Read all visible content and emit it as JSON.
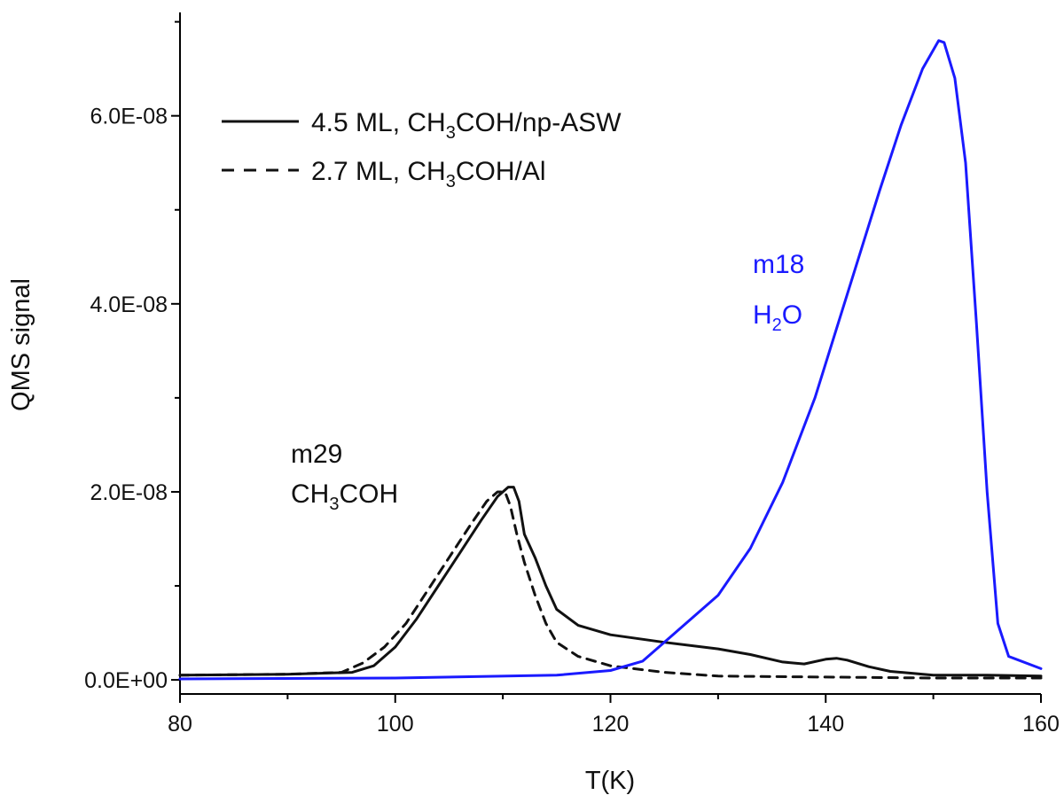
{
  "chart_data": {
    "type": "line",
    "title": "",
    "xlabel": "T(K)",
    "ylabel": "QMS signal",
    "xlim": [
      80,
      160
    ],
    "ylim": [
      -1.5e-09,
      7.1e-08
    ],
    "x_ticks": [
      80,
      100,
      120,
      140,
      160
    ],
    "x_tick_labels": [
      "80",
      "100",
      "120",
      "140",
      "160"
    ],
    "y_ticks": [
      0,
      2e-08,
      4e-08,
      6e-08
    ],
    "y_tick_labels": [
      "0.0E+00",
      "2.0E-08",
      "4.0E-08",
      "6.0E-08"
    ],
    "grid": false,
    "legend_position": "top-left",
    "series": [
      {
        "name": "4.5 ML, CH3COH/np-ASW",
        "legend_parts": [
          "4.5 ML, CH",
          "3",
          "COH/np-ASW"
        ],
        "style": "solid",
        "color": "#111111",
        "points": [
          [
            80,
            5e-10
          ],
          [
            90,
            6e-10
          ],
          [
            96,
            8e-10
          ],
          [
            98,
            1.5e-09
          ],
          [
            100,
            3.5e-09
          ],
          [
            102,
            6.5e-09
          ],
          [
            104,
            1e-08
          ],
          [
            106,
            1.35e-08
          ],
          [
            108,
            1.7e-08
          ],
          [
            109.5,
            1.95e-08
          ],
          [
            110.5,
            2.05e-08
          ],
          [
            111,
            2.05e-08
          ],
          [
            111.5,
            1.9e-08
          ],
          [
            112,
            1.55e-08
          ],
          [
            113,
            1.3e-08
          ],
          [
            114,
            1e-08
          ],
          [
            115,
            7.5e-09
          ],
          [
            117,
            5.8e-09
          ],
          [
            120,
            4.8e-09
          ],
          [
            125,
            4e-09
          ],
          [
            130,
            3.3e-09
          ],
          [
            133,
            2.7e-09
          ],
          [
            136,
            1.9e-09
          ],
          [
            138,
            1.7e-09
          ],
          [
            140,
            2.2e-09
          ],
          [
            141,
            2.3e-09
          ],
          [
            142,
            2.1e-09
          ],
          [
            144,
            1.4e-09
          ],
          [
            146,
            9e-10
          ],
          [
            150,
            5e-10
          ],
          [
            155,
            5e-10
          ],
          [
            160,
            4e-10
          ]
        ]
      },
      {
        "name": "2.7 ML, CH3COH/Al",
        "legend_parts": [
          "2.7 ML, CH",
          "3",
          "COH/Al"
        ],
        "style": "dashed",
        "color": "#111111",
        "points": [
          [
            80,
            5e-10
          ],
          [
            90,
            6e-10
          ],
          [
            95,
            8e-10
          ],
          [
            97,
            1.8e-09
          ],
          [
            99,
            3.5e-09
          ],
          [
            101,
            6e-09
          ],
          [
            103,
            9.5e-09
          ],
          [
            105,
            1.3e-08
          ],
          [
            107,
            1.65e-08
          ],
          [
            108.5,
            1.9e-08
          ],
          [
            109.5,
            2e-08
          ],
          [
            110.2,
            2e-08
          ],
          [
            110.7,
            1.85e-08
          ],
          [
            111.3,
            1.55e-08
          ],
          [
            112,
            1.25e-08
          ],
          [
            113,
            9e-09
          ],
          [
            114,
            6e-09
          ],
          [
            115,
            4e-09
          ],
          [
            117,
            2.5e-09
          ],
          [
            120,
            1.5e-09
          ],
          [
            125,
            8e-10
          ],
          [
            130,
            4e-10
          ],
          [
            140,
            3e-10
          ],
          [
            150,
            2e-10
          ],
          [
            160,
            2e-10
          ]
        ]
      },
      {
        "name": "m18 H2O",
        "style": "solid",
        "color": "#1a1aff",
        "points": [
          [
            80,
            1e-10
          ],
          [
            100,
            2e-10
          ],
          [
            115,
            5e-10
          ],
          [
            120,
            1e-09
          ],
          [
            123,
            2e-09
          ],
          [
            126,
            5e-09
          ],
          [
            130,
            9e-09
          ],
          [
            133,
            1.4e-08
          ],
          [
            136,
            2.1e-08
          ],
          [
            139,
            3e-08
          ],
          [
            142,
            4.1e-08
          ],
          [
            145,
            5.2e-08
          ],
          [
            147,
            5.9e-08
          ],
          [
            149,
            6.5e-08
          ],
          [
            150.5,
            6.8e-08
          ],
          [
            151,
            6.78e-08
          ],
          [
            152,
            6.4e-08
          ],
          [
            153,
            5.5e-08
          ],
          [
            154,
            3.8e-08
          ],
          [
            155,
            2e-08
          ],
          [
            156,
            6e-09
          ],
          [
            157,
            2.5e-09
          ],
          [
            160,
            1.2e-09
          ]
        ]
      }
    ],
    "annotations": [
      {
        "label": "m29",
        "formula_parts": [
          "CH",
          "3",
          "COH"
        ],
        "color": "#111111"
      },
      {
        "label": "m18",
        "formula_parts": [
          "H",
          "2",
          "O"
        ],
        "color": "#1a1aff"
      }
    ]
  }
}
